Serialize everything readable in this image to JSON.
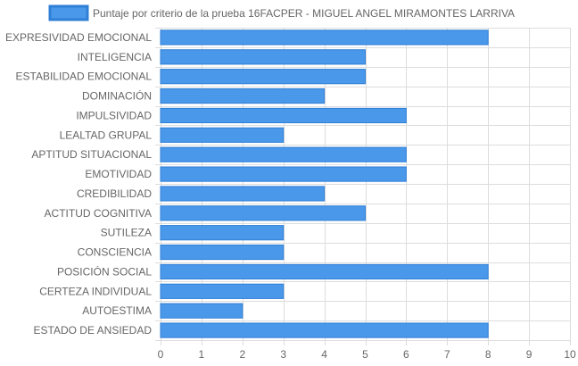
{
  "chart_data": {
    "type": "bar",
    "orientation": "horizontal",
    "categories": [
      "EXPRESIVIDAD EMOCIONAL",
      "INTELIGENCIA",
      "ESTABILIDAD EMOCIONAL",
      "DOMINACIÓN",
      "IMPULSIVIDAD",
      "LEALTAD GRUPAL",
      "APTITUD SITUACIONAL",
      "EMOTIVIDAD",
      "CREDIBILIDAD",
      "ACTITUD COGNITIVA",
      "SUTILEZA",
      "CONSCIENCIA",
      "POSICIÓN SOCIAL",
      "CERTEZA INDIVIDUAL",
      "AUTOESTIMA",
      "ESTADO DE ANSIEDAD"
    ],
    "series": [
      {
        "name": "Puntaje por criterio de la prueba 16FACPER - MIGUEL ANGEL MIRAMONTES LARRIVA",
        "values": [
          8,
          5,
          5,
          4,
          6,
          3,
          6,
          6,
          4,
          5,
          3,
          3,
          8,
          3,
          2,
          8
        ]
      }
    ],
    "xlim": [
      0,
      10
    ],
    "xticks": [
      "0",
      "1",
      "2",
      "3",
      "4",
      "5",
      "6",
      "7",
      "8",
      "9",
      "10"
    ],
    "grid": true,
    "legend_position": "top",
    "colors": {
      "bar_fill": "#4a98ea",
      "bar_stroke": "#2f7fd6",
      "grid": "#dddddd"
    }
  }
}
